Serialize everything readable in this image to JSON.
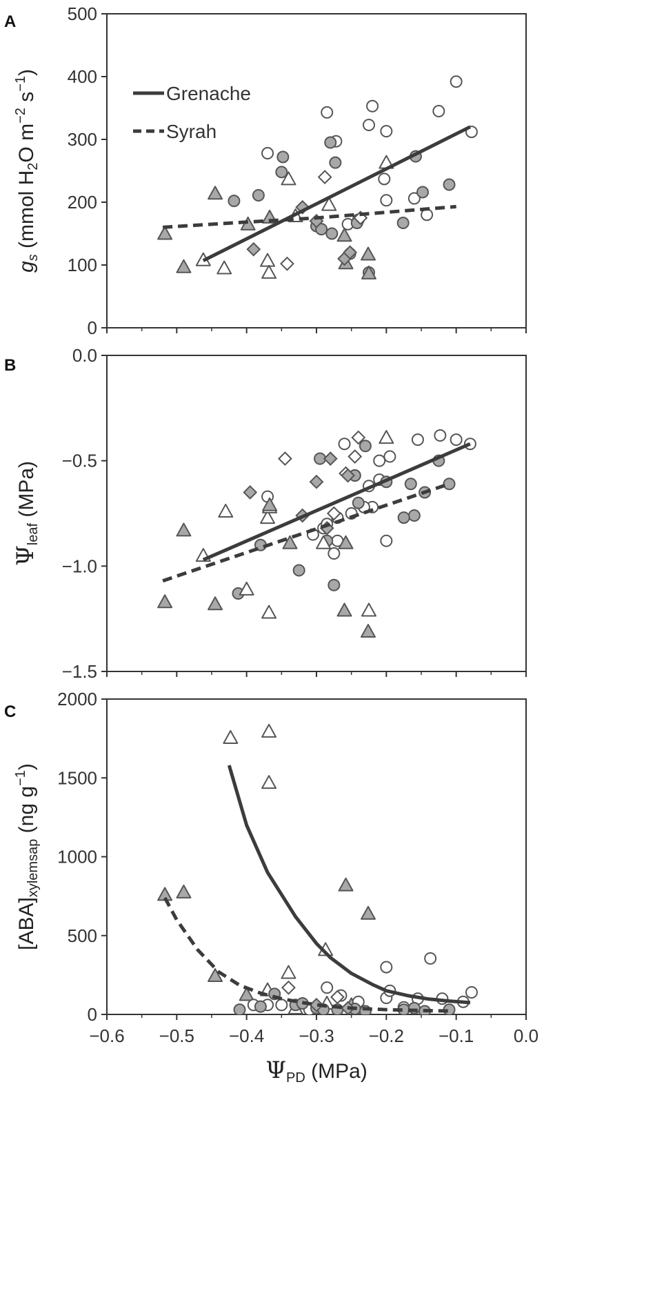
{
  "chart_data": [
    {
      "panel_label": "A",
      "type": "scatter",
      "title": "",
      "xlim": [
        -0.6,
        0.0
      ],
      "ylim": [
        0,
        500
      ],
      "yticks": [
        0,
        100,
        200,
        300,
        400,
        500
      ],
      "ytick_labels": [
        "0",
        "100",
        "200",
        "300",
        "400",
        "500"
      ],
      "ylabel": {
        "italic": "g",
        "sub_italic": "s",
        "rest": " (mmol H",
        "sub2": "2",
        "rest2": "O m",
        "sup1": "−2",
        "rest3": " s",
        "sup2": "−1",
        "end": ")"
      },
      "legend": {
        "placement": "top-left",
        "entries": [
          {
            "label": "Grenache",
            "style": "solid"
          },
          {
            "label": "Syrah",
            "style": "dashed"
          }
        ]
      },
      "series": [
        {
          "name": "Grenache",
          "fit": "linear",
          "points": [
            [
              -0.462,
              107
            ],
            [
              -0.08,
              320
            ]
          ]
        },
        {
          "name": "Syrah",
          "fit": "quadratic",
          "points": [
            [
              -0.52,
              160
            ],
            [
              -0.42,
              167
            ],
            [
              -0.3,
              175
            ],
            [
              -0.2,
              184
            ],
            [
              -0.1,
              193
            ]
          ]
        }
      ],
      "markers": [
        {
          "shape": "circle",
          "fill": "white",
          "x": [
            -0.37,
            -0.285,
            -0.22,
            -0.2,
            -0.125,
            -0.1,
            -0.078,
            -0.225,
            -0.272,
            -0.255,
            -0.203,
            -0.16,
            -0.142,
            -0.2,
            -0.24
          ],
          "y": [
            278,
            343,
            353,
            313,
            345,
            392,
            312,
            323,
            297,
            165,
            237,
            206,
            180,
            203,
            172
          ]
        },
        {
          "shape": "circle",
          "fill": "gray",
          "x": [
            -0.418,
            -0.383,
            -0.35,
            -0.348,
            -0.28,
            -0.273,
            -0.3,
            -0.293,
            -0.278,
            -0.242,
            -0.252,
            -0.225,
            -0.176,
            -0.158,
            -0.148,
            -0.11
          ],
          "y": [
            202,
            211,
            248,
            272,
            295,
            263,
            162,
            157,
            150,
            167,
            118,
            88,
            167,
            273,
            216,
            228
          ]
        },
        {
          "shape": "triangle",
          "fill": "white",
          "x": [
            -0.462,
            -0.432,
            -0.37,
            -0.368,
            -0.34,
            -0.282,
            -0.2,
            -0.33
          ],
          "y": [
            108,
            95,
            107,
            88,
            237,
            196,
            263,
            178
          ]
        },
        {
          "shape": "triangle",
          "fill": "gray",
          "x": [
            -0.517,
            -0.49,
            -0.445,
            -0.398,
            -0.367,
            -0.26,
            -0.258,
            -0.226,
            -0.225
          ],
          "y": [
            150,
            97,
            214,
            165,
            176,
            147,
            103,
            117,
            87
          ]
        },
        {
          "shape": "diamond",
          "fill": "white",
          "x": [
            -0.342,
            -0.288,
            -0.237
          ],
          "y": [
            102,
            240,
            175
          ]
        },
        {
          "shape": "diamond",
          "fill": "gray",
          "x": [
            -0.39,
            -0.32,
            -0.3,
            -0.26,
            -0.252
          ],
          "y": [
            125,
            192,
            170,
            110,
            120
          ]
        }
      ]
    },
    {
      "panel_label": "B",
      "type": "scatter",
      "title": "",
      "xlim": [
        -0.6,
        0.0
      ],
      "ylim": [
        -1.5,
        0.0
      ],
      "yticks": [
        -1.5,
        -1.0,
        -0.5,
        0.0
      ],
      "ytick_labels": [
        "−1.5",
        "−1.0",
        "−0.5",
        "0.0"
      ],
      "ylabel": {
        "main": "Ψ",
        "sub": "leaf",
        "rest": " (MPa)"
      },
      "series": [
        {
          "name": "Grenache",
          "fit": "linear",
          "points": [
            [
              -0.462,
              -0.97
            ],
            [
              -0.08,
              -0.42
            ]
          ]
        },
        {
          "name": "Syrah",
          "fit": "linear",
          "points": [
            [
              -0.52,
              -1.07
            ],
            [
              -0.11,
              -0.61
            ]
          ]
        }
      ],
      "markers": [
        {
          "shape": "circle",
          "fill": "white",
          "x": [
            -0.37,
            -0.26,
            -0.21,
            -0.195,
            -0.155,
            -0.123,
            -0.1,
            -0.08,
            -0.27,
            -0.245,
            -0.225,
            -0.22,
            -0.2,
            -0.21,
            -0.232,
            -0.25,
            -0.275,
            -0.29,
            -0.305,
            -0.27,
            -0.285
          ],
          "y": [
            -0.67,
            -0.42,
            -0.5,
            -0.48,
            -0.4,
            -0.38,
            -0.4,
            -0.42,
            -0.77,
            -0.57,
            -0.62,
            -0.72,
            -0.88,
            -0.59,
            -0.72,
            -0.75,
            -0.94,
            -0.82,
            -0.85,
            -0.88,
            -0.8
          ]
        },
        {
          "shape": "circle",
          "fill": "gray",
          "x": [
            -0.412,
            -0.38,
            -0.325,
            -0.295,
            -0.285,
            -0.275,
            -0.23,
            -0.245,
            -0.2,
            -0.165,
            -0.145,
            -0.16,
            -0.175,
            -0.11,
            -0.125,
            -0.24
          ],
          "y": [
            -1.13,
            -0.9,
            -1.02,
            -0.49,
            -0.88,
            -1.09,
            -0.43,
            -0.57,
            -0.6,
            -0.61,
            -0.65,
            -0.76,
            -0.77,
            -0.61,
            -0.5,
            -0.7
          ]
        },
        {
          "shape": "triangle",
          "fill": "white",
          "x": [
            -0.462,
            -0.43,
            -0.37,
            -0.367,
            -0.368,
            -0.29,
            -0.2,
            -0.225,
            -0.4
          ],
          "y": [
            -0.95,
            -0.74,
            -0.77,
            -0.72,
            -1.22,
            -0.89,
            -0.39,
            -1.21,
            -1.11
          ]
        },
        {
          "shape": "triangle",
          "fill": "gray",
          "x": [
            -0.517,
            -0.49,
            -0.445,
            -0.367,
            -0.338,
            -0.26,
            -0.258,
            -0.226
          ],
          "y": [
            -1.17,
            -0.83,
            -1.18,
            -0.71,
            -0.89,
            -1.21,
            -0.89,
            -1.31
          ]
        },
        {
          "shape": "diamond",
          "fill": "white",
          "x": [
            -0.345,
            -0.24,
            -0.245,
            -0.258,
            -0.275
          ],
          "y": [
            -0.49,
            -0.39,
            -0.48,
            -0.56,
            -0.75
          ]
        },
        {
          "shape": "diamond",
          "fill": "gray",
          "x": [
            -0.395,
            -0.3,
            -0.32,
            -0.255,
            -0.28,
            -0.285
          ],
          "y": [
            -0.65,
            -0.6,
            -0.76,
            -0.57,
            -0.49,
            -0.82
          ]
        }
      ]
    },
    {
      "panel_label": "C",
      "type": "scatter",
      "title": "",
      "xlim": [
        -0.6,
        0.0
      ],
      "ylim": [
        0,
        2000
      ],
      "xticks": [
        -0.6,
        -0.5,
        -0.4,
        -0.3,
        -0.2,
        -0.1,
        0.0
      ],
      "xtick_labels": [
        "−0.6",
        "−0.5",
        "−0.4",
        "−0.3",
        "−0.2",
        "−0.1",
        "0.0"
      ],
      "yticks": [
        0,
        500,
        1000,
        1500,
        2000
      ],
      "ytick_labels": [
        "0",
        "500",
        "1000",
        "1500",
        "2000"
      ],
      "xlabel": {
        "main": "Ψ",
        "sub": "PD",
        "rest": " (MPa)"
      },
      "ylabel": {
        "main": "[ABA]",
        "sub": "xylemsap",
        "rest": " (ng g",
        "sup": "−1",
        "end": ")"
      },
      "series": [
        {
          "name": "Grenache",
          "fit": "exponential",
          "points": [
            [
              -0.425,
              1580
            ],
            [
              -0.4,
              1200
            ],
            [
              -0.37,
              900
            ],
            [
              -0.33,
              620
            ],
            [
              -0.3,
              450
            ],
            [
              -0.28,
              360
            ],
            [
              -0.25,
              260
            ],
            [
              -0.22,
              190
            ],
            [
              -0.2,
              150
            ],
            [
              -0.17,
              120
            ],
            [
              -0.14,
              98
            ],
            [
              -0.11,
              85
            ],
            [
              -0.08,
              75
            ]
          ]
        },
        {
          "name": "Syrah",
          "fit": "exponential",
          "points": [
            [
              -0.517,
              740
            ],
            [
              -0.5,
              600
            ],
            [
              -0.47,
              410
            ],
            [
              -0.44,
              270
            ],
            [
              -0.41,
              185
            ],
            [
              -0.38,
              135
            ],
            [
              -0.35,
              100
            ],
            [
              -0.32,
              75
            ],
            [
              -0.29,
              55
            ],
            [
              -0.25,
              40
            ],
            [
              -0.2,
              30
            ],
            [
              -0.15,
              25
            ],
            [
              -0.11,
              22
            ]
          ]
        }
      ],
      "markers": [
        {
          "shape": "triangle",
          "fill": "white",
          "x": [
            -0.423,
            -0.368,
            -0.368,
            -0.287,
            -0.34,
            -0.37,
            -0.285,
            -0.33
          ],
          "y": [
            1755,
            1795,
            1470,
            410,
            265,
            155,
            70,
            40
          ]
        },
        {
          "shape": "triangle",
          "fill": "gray",
          "x": [
            -0.517,
            -0.49,
            -0.445,
            -0.4,
            -0.258,
            -0.226,
            -0.25,
            -0.24
          ],
          "y": [
            760,
            775,
            245,
            125,
            820,
            640,
            60,
            40
          ]
        },
        {
          "shape": "circle",
          "fill": "white",
          "x": [
            -0.2,
            -0.137,
            -0.078,
            -0.175,
            -0.155,
            -0.2,
            -0.195,
            -0.285,
            -0.265,
            -0.35,
            -0.39,
            -0.37,
            -0.31,
            -0.24,
            -0.09,
            -0.12
          ],
          "y": [
            300,
            355,
            140,
            45,
            100,
            105,
            150,
            170,
            120,
            60,
            60,
            60,
            30,
            80,
            80,
            100
          ]
        },
        {
          "shape": "circle",
          "fill": "gray",
          "x": [
            -0.41,
            -0.38,
            -0.33,
            -0.3,
            -0.27,
            -0.245,
            -0.23,
            -0.175,
            -0.16,
            -0.145,
            -0.11,
            -0.29,
            -0.32,
            -0.36
          ],
          "y": [
            30,
            50,
            60,
            40,
            30,
            35,
            20,
            30,
            40,
            20,
            30,
            30,
            70,
            130
          ]
        },
        {
          "shape": "diamond",
          "fill": "white",
          "x": [
            -0.27,
            -0.34
          ],
          "y": [
            110,
            170
          ]
        },
        {
          "shape": "diamond",
          "fill": "gray",
          "x": [
            -0.3,
            -0.255
          ],
          "y": [
            60,
            40
          ]
        }
      ]
    }
  ]
}
